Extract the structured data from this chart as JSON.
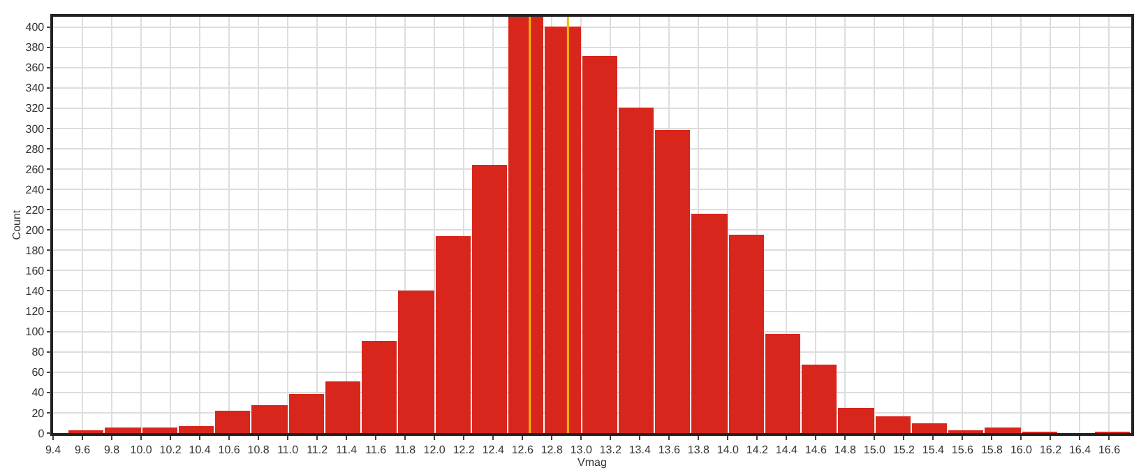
{
  "chart_data": {
    "type": "histogram",
    "xlabel": "Vmag",
    "ylabel": "Count",
    "bins": [
      9.5,
      9.75,
      10.0,
      10.25,
      10.5,
      10.75,
      11.0,
      11.25,
      11.5,
      11.75,
      12.0,
      12.25,
      12.5,
      12.75,
      13.0,
      13.25,
      13.5,
      13.75,
      14.0,
      14.25,
      14.5,
      14.75,
      15.0,
      15.25,
      15.5,
      15.75,
      16.0,
      16.25,
      16.5,
      16.75
    ],
    "values": [
      3,
      6,
      5,
      7,
      22,
      28,
      39,
      51,
      91,
      141,
      194,
      264,
      410,
      401,
      372,
      321,
      298,
      216,
      196,
      98,
      67,
      25,
      17,
      10,
      3,
      6,
      1,
      0,
      1
    ],
    "color": "#d9261c",
    "xlim": [
      9.4,
      16.75
    ],
    "xticks": [
      9.4,
      9.6,
      9.8,
      {
        "value": 10,
        "label": "10.0"
      },
      10.2,
      10.4,
      10.6,
      10.8,
      {
        "value": 11,
        "label": "11.0"
      },
      11.2,
      11.4,
      11.6,
      11.8,
      {
        "value": 12,
        "label": "12.0"
      },
      12.2,
      12.4,
      12.6,
      12.8,
      {
        "value": 13,
        "label": "13.0"
      },
      13.2,
      13.4,
      13.6,
      13.8,
      {
        "value": 14,
        "label": "14.0"
      },
      14.2,
      14.4,
      14.6,
      14.8,
      {
        "value": 15,
        "label": "15.0"
      },
      15.2,
      15.4,
      15.6,
      15.8,
      {
        "value": 16,
        "label": "16.0"
      },
      16.2,
      16.4,
      16.6
    ],
    "ylim": [
      0,
      410
    ],
    "yticks": [
      0,
      20,
      40,
      60,
      80,
      100,
      120,
      140,
      160,
      180,
      200,
      220,
      240,
      260,
      280,
      300,
      320,
      340,
      360,
      380,
      400
    ],
    "ref_lines": [
      {
        "axis": "x",
        "value": 12.65,
        "color": "#f5b800"
      },
      {
        "axis": "x",
        "value": 12.91,
        "color": "#f5b800"
      }
    ],
    "grid": true
  }
}
